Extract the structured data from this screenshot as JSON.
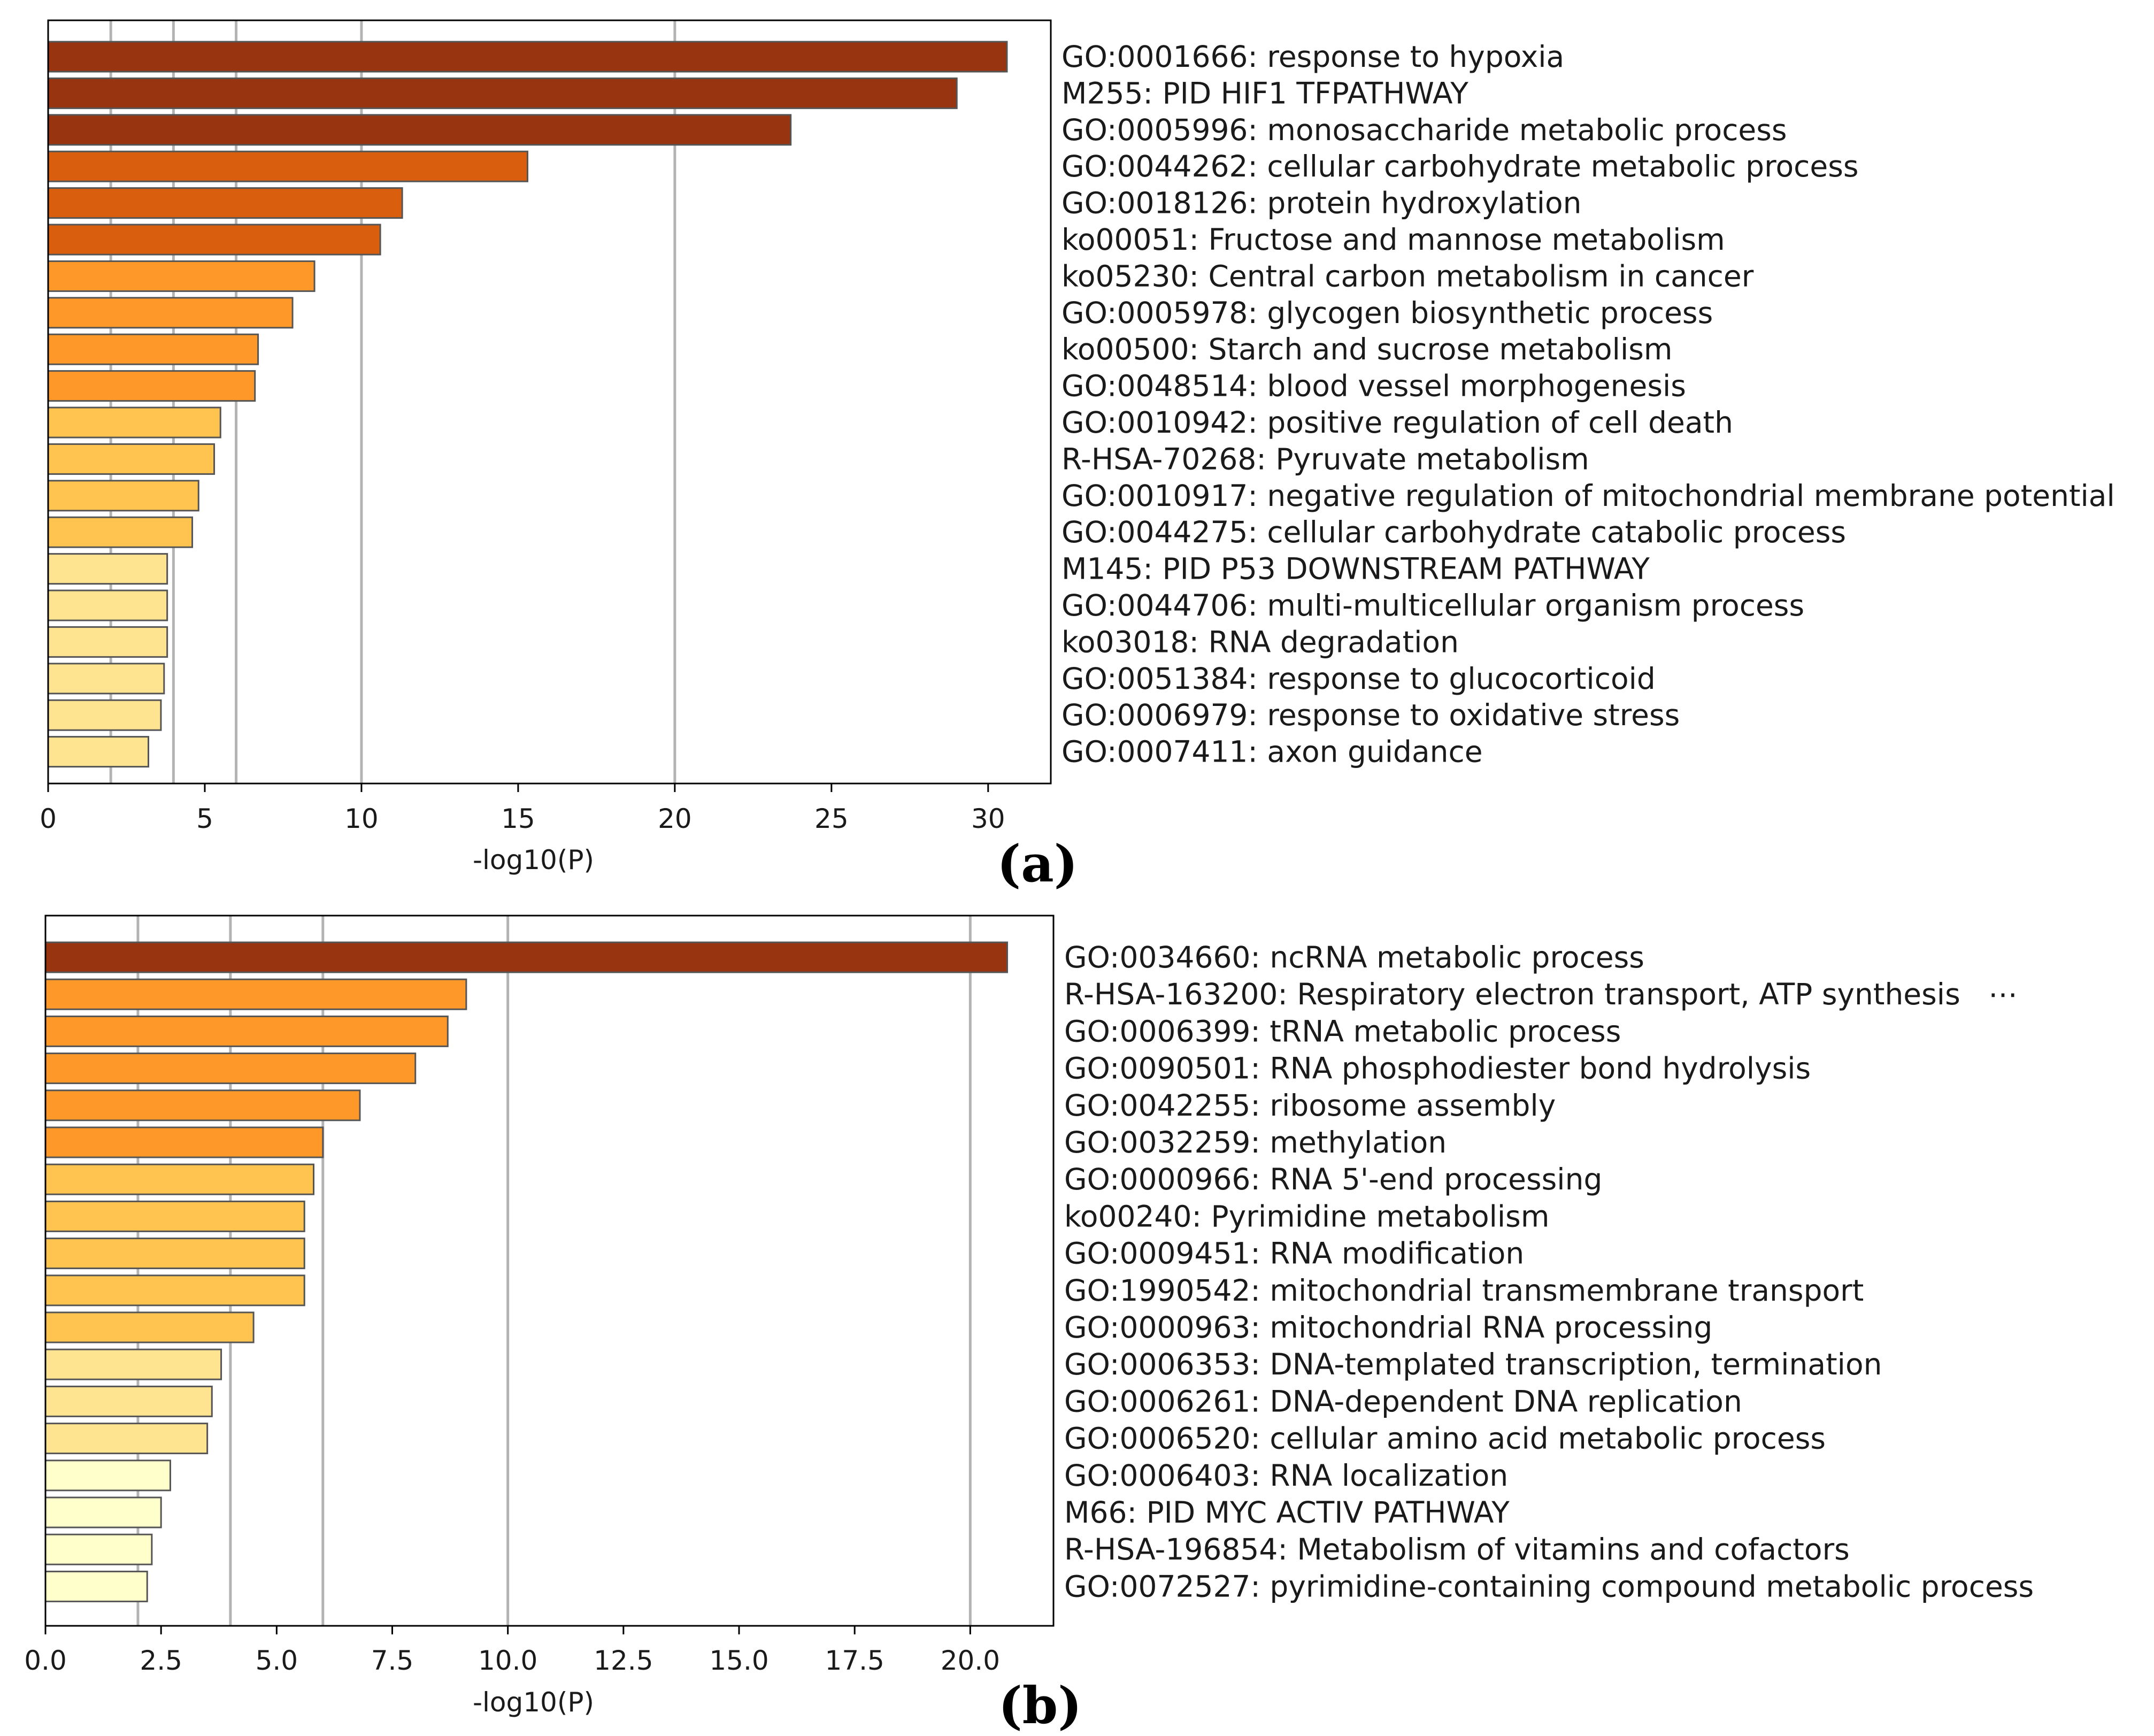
{
  "colors": {
    "level1": "#983410",
    "level2": "#d95f0e",
    "level3": "#fe9929",
    "level4": "#fec44f",
    "level5": "#fee391",
    "level6": "#ffffcc"
  },
  "chart_data": [
    {
      "type": "bar",
      "orientation": "horizontal",
      "panel_label": "(a)",
      "xlabel": "-log10(P)",
      "xlim": [
        0,
        32
      ],
      "xticks": [
        0,
        5,
        10,
        15,
        20,
        25,
        30
      ],
      "xtick_labels": [
        "0",
        "5",
        "10",
        "15",
        "20",
        "25",
        "30"
      ],
      "gridlines_x": [
        2,
        4,
        6,
        10,
        20
      ],
      "categories": [
        "GO:0001666: response to hypoxia",
        "M255: PID HIF1 TFPATHWAY",
        "GO:0005996: monosaccharide metabolic process",
        "GO:0044262: cellular carbohydrate metabolic process",
        "GO:0018126: protein hydroxylation",
        "ko00051: Fructose and mannose metabolism",
        "ko05230: Central carbon metabolism in cancer",
        "GO:0005978: glycogen biosynthetic process",
        "ko00500: Starch and sucrose metabolism",
        "GO:0048514: blood vessel morphogenesis",
        "GO:0010942: positive regulation of cell death",
        "R-HSA-70268: Pyruvate metabolism",
        "GO:0010917: negative regulation of mitochondrial membrane potential",
        "GO:0044275: cellular carbohydrate catabolic process",
        "M145: PID P53 DOWNSTREAM PATHWAY",
        "GO:0044706: multi-multicellular organism process",
        "ko03018: RNA degradation",
        "GO:0051384: response to glucocorticoid",
        "GO:0006979: response to oxidative stress",
        "GO:0007411: axon guidance"
      ],
      "values": [
        30.6,
        29.0,
        23.7,
        15.3,
        11.3,
        10.6,
        8.5,
        7.8,
        6.7,
        6.6,
        5.5,
        5.3,
        4.8,
        4.6,
        3.8,
        3.8,
        3.8,
        3.7,
        3.6,
        3.2
      ],
      "color_levels": [
        1,
        1,
        1,
        2,
        2,
        2,
        3,
        3,
        3,
        3,
        4,
        4,
        4,
        4,
        5,
        5,
        5,
        5,
        5,
        5
      ]
    },
    {
      "type": "bar",
      "orientation": "horizontal",
      "panel_label": "(b)",
      "xlabel": "-log10(P)",
      "xlim": [
        0,
        21.8
      ],
      "xticks": [
        0,
        2.5,
        5,
        7.5,
        10,
        12.5,
        15,
        17.5,
        20
      ],
      "xtick_labels": [
        "0.0",
        "2.5",
        "5.0",
        "7.5",
        "10.0",
        "12.5",
        "15.0",
        "17.5",
        "20.0"
      ],
      "gridlines_x": [
        2,
        4,
        6,
        10,
        20
      ],
      "categories": [
        "GO:0034660: ncRNA metabolic process",
        "R-HSA-163200: Respiratory electron transport, ATP synthesis   ⋯",
        "GO:0006399: tRNA metabolic process",
        "GO:0090501: RNA phosphodiester bond hydrolysis",
        "GO:0042255: ribosome assembly",
        "GO:0032259: methylation",
        "GO:0000966: RNA 5'-end processing",
        "ko00240: Pyrimidine metabolism",
        "GO:0009451: RNA modification",
        "GO:1990542: mitochondrial transmembrane transport",
        "GO:0000963: mitochondrial RNA processing",
        "GO:0006353: DNA-templated transcription, termination",
        "GO:0006261: DNA-dependent DNA replication",
        "GO:0006520: cellular amino acid metabolic process",
        "GO:0006403: RNA localization",
        "M66: PID MYC ACTIV PATHWAY",
        "R-HSA-196854: Metabolism of vitamins and cofactors",
        "GO:0072527: pyrimidine-containing compound metabolic process"
      ],
      "values": [
        20.8,
        9.1,
        8.7,
        8.0,
        6.8,
        6.0,
        5.8,
        5.6,
        5.6,
        5.6,
        4.5,
        3.8,
        3.6,
        3.5,
        2.7,
        2.5,
        2.3,
        2.2
      ],
      "color_levels": [
        1,
        3,
        3,
        3,
        3,
        3,
        4,
        4,
        4,
        4,
        4,
        5,
        5,
        5,
        6,
        6,
        6,
        6
      ]
    }
  ]
}
